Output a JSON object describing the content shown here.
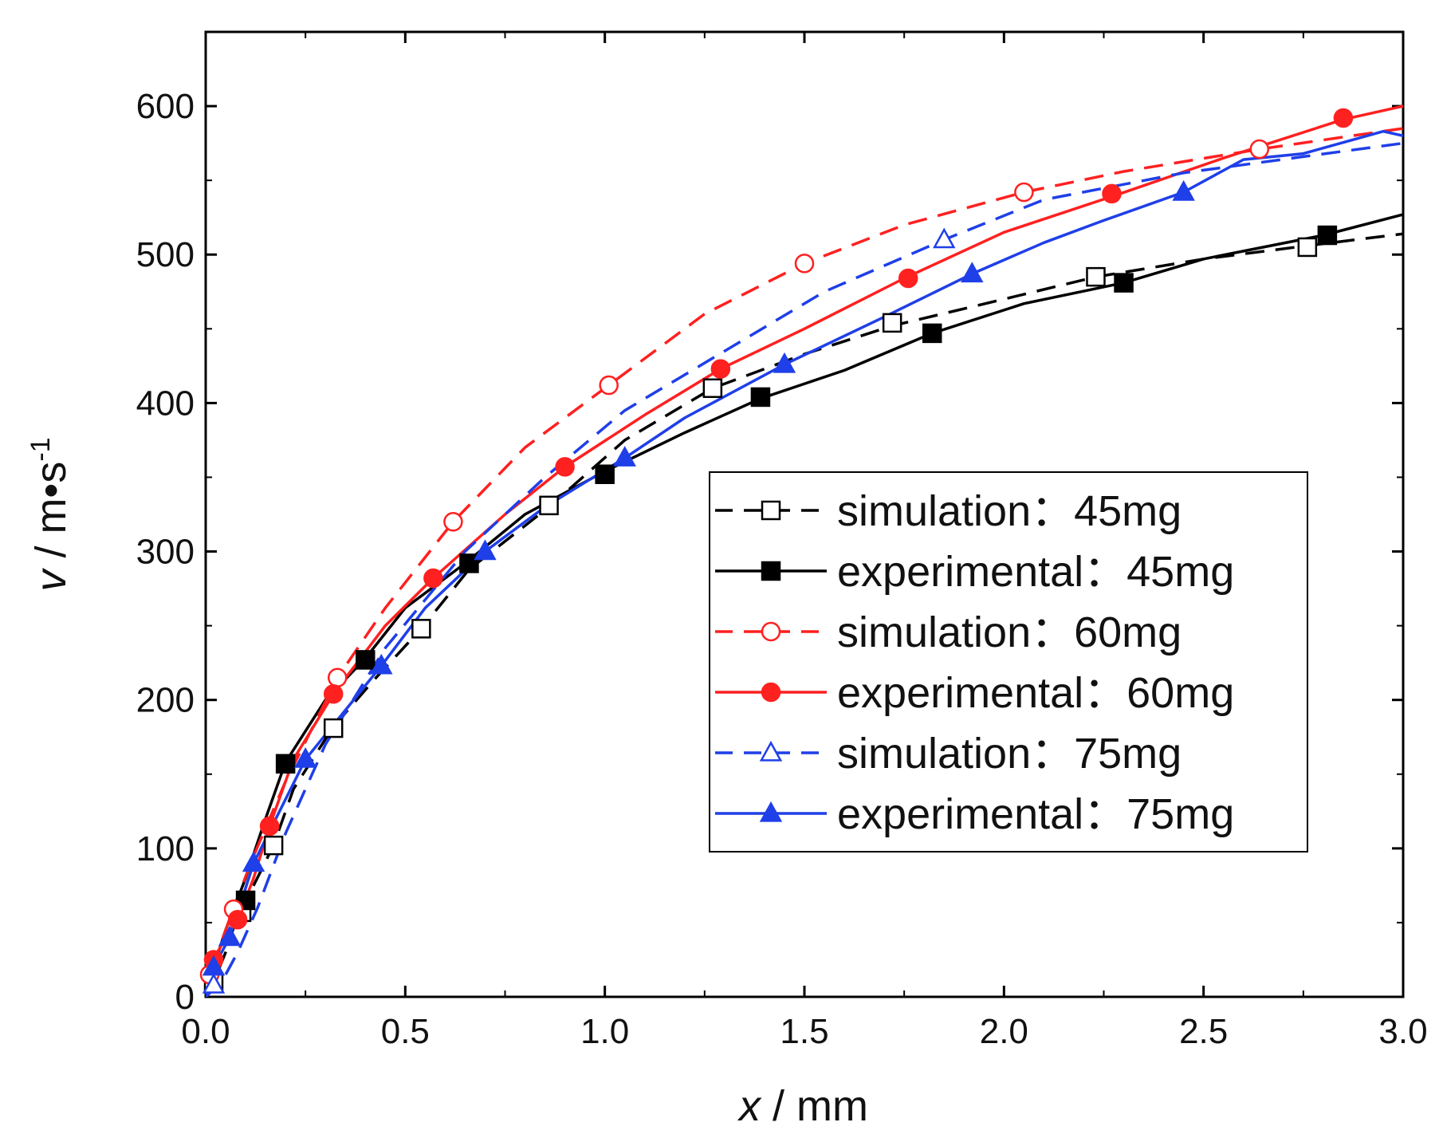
{
  "chart_data": {
    "type": "line",
    "xlabel": {
      "var": "x",
      "unit": " / mm"
    },
    "ylabel": {
      "var": "v",
      "unit": "  / m•s",
      "sup": "-1"
    },
    "xlim": [
      0.0,
      3.0
    ],
    "ylim": [
      0,
      650
    ],
    "xticks": [
      0.0,
      0.5,
      1.0,
      1.5,
      2.0,
      2.5,
      3.0
    ],
    "xtick_labels": [
      "0.0",
      "0.5",
      "1.0",
      "1.5",
      "2.0",
      "2.5",
      "3.0"
    ],
    "yticks": [
      0,
      100,
      200,
      300,
      400,
      500,
      600
    ],
    "ytick_labels": [
      "0",
      "100",
      "200",
      "300",
      "400",
      "500",
      "600"
    ],
    "legend_position": "center-right",
    "series": [
      {
        "name": "simulation：45mg",
        "color": "#000000",
        "dash": true,
        "marker": "square",
        "filled": false,
        "x": [
          0.0,
          0.02,
          0.05,
          0.08,
          0.12,
          0.17,
          0.22,
          0.32,
          0.42,
          0.54,
          0.66,
          0.86,
          1.05,
          1.27,
          1.5,
          1.72,
          2.0,
          2.23,
          2.5,
          2.76,
          3.0
        ],
        "y": [
          0,
          10,
          30,
          55,
          75,
          102,
          140,
          182,
          213,
          248,
          288,
          330,
          375,
          410,
          433,
          452,
          470,
          485,
          497,
          506,
          514
        ],
        "markers_x": [
          0.02,
          0.09,
          0.17,
          0.32,
          0.54,
          0.86,
          1.27,
          1.72,
          2.23,
          2.76
        ],
        "markers_y": [
          10,
          57,
          102,
          181,
          248,
          331,
          410,
          454,
          485,
          505
        ]
      },
      {
        "name": "experimental：45mg",
        "color": "#000000",
        "dash": false,
        "marker": "square",
        "filled": true,
        "x": [
          0.0,
          0.02,
          0.05,
          0.1,
          0.15,
          0.2,
          0.3,
          0.4,
          0.5,
          0.65,
          0.8,
          1.0,
          1.2,
          1.39,
          1.6,
          1.82,
          2.05,
          2.3,
          2.5,
          2.8,
          3.0
        ],
        "y": [
          0,
          20,
          45,
          80,
          120,
          158,
          200,
          228,
          262,
          292,
          325,
          354,
          380,
          403,
          422,
          447,
          467,
          481,
          497,
          513,
          527
        ],
        "markers_x": [
          0.1,
          0.2,
          0.4,
          0.66,
          1.0,
          1.39,
          1.82,
          2.3,
          2.81
        ],
        "markers_y": [
          65,
          157,
          227,
          292,
          352,
          404,
          447,
          481,
          513
        ]
      },
      {
        "name": "simulation：60mg",
        "color": "#ff2020",
        "dash": true,
        "marker": "circle",
        "filled": false,
        "x": [
          0.0,
          0.01,
          0.03,
          0.07,
          0.12,
          0.2,
          0.33,
          0.45,
          0.62,
          0.8,
          1.01,
          1.25,
          1.5,
          1.75,
          2.05,
          2.3,
          2.64,
          3.0
        ],
        "y": [
          0,
          15,
          30,
          60,
          95,
          145,
          215,
          262,
          320,
          370,
          412,
          460,
          494,
          520,
          542,
          556,
          571,
          585
        ],
        "markers_x": [
          0.01,
          0.07,
          0.33,
          0.62,
          1.01,
          1.5,
          2.05,
          2.64
        ],
        "markers_y": [
          15,
          59,
          215,
          320,
          412,
          494,
          542,
          571
        ]
      },
      {
        "name": "experimental：60mg",
        "color": "#ff2020",
        "dash": false,
        "marker": "circle",
        "filled": true,
        "x": [
          0.0,
          0.02,
          0.05,
          0.08,
          0.12,
          0.16,
          0.22,
          0.32,
          0.45,
          0.57,
          0.75,
          0.9,
          1.1,
          1.29,
          1.5,
          1.75,
          2.0,
          2.28,
          2.55,
          2.85,
          3.0
        ],
        "y": [
          0,
          25,
          40,
          52,
          80,
          115,
          160,
          204,
          250,
          282,
          325,
          357,
          392,
          423,
          450,
          484,
          515,
          540,
          565,
          591,
          600
        ],
        "markers_x": [
          0.02,
          0.08,
          0.16,
          0.32,
          0.57,
          0.9,
          1.29,
          1.76,
          2.27,
          2.85
        ],
        "markers_y": [
          25,
          52,
          115,
          204,
          282,
          357,
          423,
          484,
          541,
          592
        ]
      },
      {
        "name": "simulation：75mg",
        "color": "#1f3fe8",
        "dash": true,
        "marker": "triangle",
        "filled": false,
        "x": [
          0.0,
          0.04,
          0.08,
          0.13,
          0.2,
          0.3,
          0.45,
          0.65,
          0.85,
          1.05,
          1.3,
          1.55,
          1.85,
          2.1,
          2.45,
          2.75,
          3.0
        ],
        "y": [
          0,
          10,
          30,
          60,
          110,
          170,
          235,
          300,
          350,
          395,
          435,
          475,
          510,
          537,
          555,
          566,
          575
        ],
        "markers_x": [
          0.02,
          1.85
        ],
        "markers_y": [
          8,
          510
        ]
      },
      {
        "name": "experimental：75mg",
        "color": "#1f3fe8",
        "dash": false,
        "marker": "triangle",
        "filled": true,
        "x": [
          0.0,
          0.02,
          0.06,
          0.12,
          0.25,
          0.44,
          0.55,
          0.7,
          0.85,
          1.05,
          1.2,
          1.45,
          1.7,
          1.92,
          2.1,
          2.25,
          2.45,
          2.6,
          2.75,
          2.95,
          3.0
        ],
        "y": [
          0,
          20,
          40,
          90,
          160,
          223,
          262,
          300,
          330,
          363,
          390,
          426,
          458,
          487,
          508,
          523,
          542,
          564,
          568,
          583,
          580
        ],
        "markers_x": [
          0.02,
          0.06,
          0.12,
          0.25,
          0.44,
          0.7,
          1.05,
          1.45,
          1.92,
          2.45
        ],
        "markers_y": [
          20,
          40,
          90,
          160,
          223,
          300,
          363,
          426,
          487,
          542
        ]
      }
    ]
  }
}
